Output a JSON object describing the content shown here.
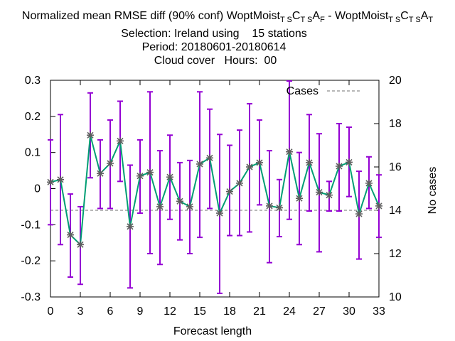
{
  "title": {
    "line1_prefix": "Normalized mean RMSE diff (90% conf) WoptMoist",
    "line1_sub1": "T S",
    "line1_mid1": "C",
    "line1_sub2": "T S",
    "line1_mid2": "A",
    "line1_sub3": "F",
    "line1_mid3": " - WoptMoist",
    "line1_sub4": "T S",
    "line1_mid4": "C",
    "line1_sub5": "T S",
    "line1_mid5": "A",
    "line1_sub6": "T",
    "line2": "Selection: Ireland using    15 stations",
    "line3": "Period: 20180601-20180614",
    "line4": "Cloud cover   Hours:  00"
  },
  "chart_data": {
    "type": "line",
    "xlabel": "Forecast length",
    "ylabel": "",
    "y2label": "No cases",
    "xlim": [
      0,
      33
    ],
    "ylim": [
      -0.3,
      0.3
    ],
    "y2lim": [
      10,
      20
    ],
    "x_ticks": [
      0,
      3,
      6,
      9,
      12,
      15,
      18,
      21,
      24,
      27,
      30,
      33
    ],
    "y_ticks": [
      -0.3,
      -0.2,
      -0.1,
      0,
      0.1,
      0.2,
      0.3
    ],
    "y_tick_labels": [
      "-0.3",
      "-0.2",
      "-0.1",
      "0",
      "0.1",
      "0.2",
      "0.3"
    ],
    "y2_ticks": [
      10,
      12,
      14,
      16,
      18,
      20
    ],
    "legend": [
      {
        "label": "Cases",
        "style": "dashed",
        "color": "#a0a0a0"
      }
    ],
    "legend_position": "top-right",
    "grid": false,
    "series": [
      {
        "name": "Cases",
        "axis": "y2",
        "color": "#a0a0a0",
        "style": "dashed",
        "x": [
          0,
          33
        ],
        "values": [
          14,
          14
        ]
      },
      {
        "axis": "y",
        "color": "#009e73",
        "marker_color": "#5e5e5e",
        "errorbar_color": "#9400d3",
        "x": [
          0,
          1,
          2,
          3,
          4,
          5,
          6,
          7,
          8,
          9,
          10,
          11,
          12,
          13,
          14,
          15,
          16,
          17,
          18,
          19,
          20,
          21,
          22,
          23,
          24,
          25,
          26,
          27,
          28,
          29,
          30,
          31,
          32,
          33
        ],
        "values": [
          0.018,
          0.025,
          -0.128,
          -0.155,
          0.148,
          0.042,
          0.07,
          0.132,
          -0.105,
          0.035,
          0.045,
          -0.05,
          0.032,
          -0.035,
          -0.05,
          0.068,
          0.085,
          -0.068,
          -0.008,
          0.015,
          0.06,
          0.072,
          -0.048,
          -0.053,
          0.102,
          -0.027,
          0.072,
          -0.01,
          -0.018,
          0.062,
          0.073,
          -0.07,
          0.015,
          -0.048
        ],
        "err_low": [
          -0.1,
          -0.155,
          -0.245,
          -0.265,
          0.03,
          -0.055,
          -0.055,
          0.02,
          -0.275,
          -0.068,
          -0.18,
          -0.21,
          -0.085,
          -0.142,
          -0.18,
          -0.135,
          -0.055,
          -0.29,
          -0.13,
          -0.13,
          -0.12,
          -0.045,
          -0.205,
          -0.133,
          -0.085,
          -0.155,
          -0.062,
          -0.175,
          -0.062,
          -0.062,
          -0.022,
          -0.195,
          -0.055,
          -0.135
        ],
        "err_high": [
          0.135,
          0.205,
          -0.015,
          -0.05,
          0.265,
          0.135,
          0.19,
          0.242,
          0.065,
          0.135,
          0.268,
          0.105,
          0.148,
          0.072,
          0.078,
          0.268,
          0.22,
          0.15,
          0.12,
          0.162,
          0.235,
          0.19,
          0.105,
          0.025,
          0.298,
          0.1,
          0.205,
          0.152,
          0.02,
          0.18,
          0.17,
          0.048,
          0.088,
          0.038
        ]
      }
    ]
  }
}
